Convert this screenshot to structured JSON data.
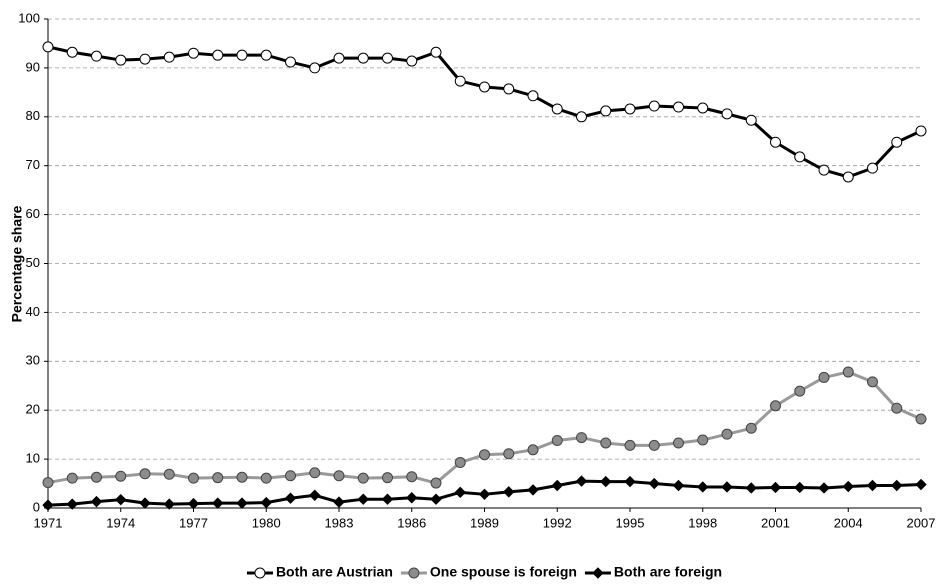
{
  "chart_data": {
    "type": "line",
    "y_label": "Percentage share",
    "x": [
      1971,
      1972,
      1973,
      1974,
      1975,
      1976,
      1977,
      1978,
      1979,
      1980,
      1981,
      1982,
      1983,
      1984,
      1985,
      1986,
      1987,
      1988,
      1989,
      1990,
      1991,
      1992,
      1993,
      1994,
      1995,
      1996,
      1997,
      1998,
      1999,
      2000,
      2001,
      2002,
      2003,
      2004,
      2005,
      2006,
      2007
    ],
    "series": [
      {
        "name": "Both are Austrian",
        "color": "#000000",
        "marker": "circle",
        "marker_fill": "#ffffff",
        "values": [
          94.3,
          93.2,
          92.4,
          91.6,
          91.8,
          92.2,
          93.0,
          92.6,
          92.6,
          92.6,
          91.2,
          90.0,
          92.0,
          92.0,
          92.0,
          91.4,
          93.2,
          87.3,
          86.1,
          85.7,
          84.3,
          81.6,
          80.0,
          81.2,
          81.6,
          82.2,
          82.0,
          81.8,
          80.6,
          79.3,
          74.8,
          71.8,
          69.1,
          67.7,
          69.5,
          74.8,
          77.1
        ]
      },
      {
        "name": "One spouse is foreign",
        "color": "#999999",
        "marker": "circle",
        "marker_fill": "#8c8c8c",
        "values": [
          5.2,
          6.1,
          6.3,
          6.5,
          7.0,
          6.9,
          6.1,
          6.2,
          6.3,
          6.1,
          6.6,
          7.2,
          6.6,
          6.1,
          6.2,
          6.4,
          5.1,
          9.3,
          10.9,
          11.1,
          11.9,
          13.8,
          14.4,
          13.3,
          12.8,
          12.8,
          13.3,
          13.9,
          15.1,
          16.3,
          20.9,
          23.9,
          26.7,
          27.8,
          25.8,
          20.4,
          18.2
        ]
      },
      {
        "name": "Both are foreign",
        "color": "#000000",
        "marker": "diamond",
        "marker_fill": "#000000",
        "values": [
          0.6,
          0.8,
          1.3,
          1.7,
          1.0,
          0.8,
          0.9,
          1.0,
          1.0,
          1.1,
          2.0,
          2.6,
          1.2,
          1.8,
          1.8,
          2.1,
          1.8,
          3.2,
          2.8,
          3.3,
          3.7,
          4.6,
          5.5,
          5.4,
          5.4,
          5.0,
          4.6,
          4.3,
          4.3,
          4.1,
          4.2,
          4.2,
          4.1,
          4.4,
          4.6,
          4.6,
          4.8
        ]
      }
    ],
    "xlim": [
      1971,
      2007
    ],
    "xticks": [
      1971,
      1974,
      1977,
      1980,
      1983,
      1986,
      1989,
      1992,
      1995,
      1998,
      2001,
      2004,
      2007
    ],
    "ylim": [
      0,
      100
    ],
    "yticks": [
      0,
      10,
      20,
      30,
      40,
      50,
      60,
      70,
      80,
      90,
      100
    ],
    "grid": true,
    "legend": "bottom"
  }
}
